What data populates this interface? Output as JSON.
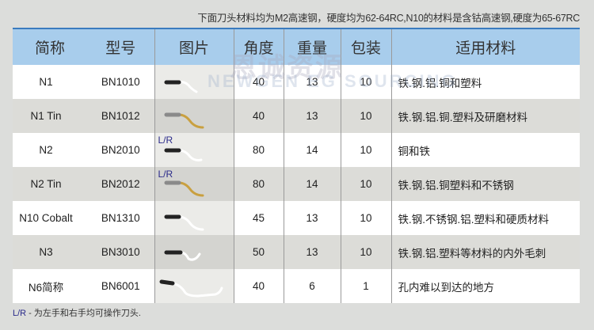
{
  "note": "下面刀头材料均为M2高速钢，硬度均为62-64RC,N10的材料是含钴高速钢,硬度为65-67RC",
  "headers": [
    "简称",
    "型号",
    "图片",
    "角度",
    "重量",
    "包装",
    "适用材料"
  ],
  "rows": [
    {
      "name": "N1",
      "model": "BN1010",
      "lr": "",
      "angle": "40",
      "weight": "13",
      "pack": "10",
      "material": "铁.钢.铝.铜和塑料",
      "tool_color": "#ffffff"
    },
    {
      "name": "N1 Tin",
      "model": "BN1012",
      "lr": "",
      "angle": "40",
      "weight": "13",
      "pack": "10",
      "material": "铁.钢.铝.铜.塑料及研磨材料",
      "tool_color": "#c9a040"
    },
    {
      "name": "N2",
      "model": "BN2010",
      "lr": "L/R",
      "angle": "80",
      "weight": "14",
      "pack": "10",
      "material": "铜和铁",
      "tool_color": "#ffffff"
    },
    {
      "name": "N2 Tin",
      "model": "BN2012",
      "lr": "L/R",
      "angle": "80",
      "weight": "14",
      "pack": "10",
      "material": "铁.钢.铝.铜塑料和不锈钢",
      "tool_color": "#c9a040"
    },
    {
      "name": "N10 Cobalt",
      "model": "BN1310",
      "lr": "",
      "angle": "45",
      "weight": "13",
      "pack": "10",
      "material": "铁.钢.不锈钢.铝.塑料和硬质材料",
      "tool_color": "#ffffff"
    },
    {
      "name": "N3",
      "model": "BN3010",
      "lr": "",
      "angle": "50",
      "weight": "13",
      "pack": "10",
      "material": "铁.钢.铝.塑料等材料的内外毛刺",
      "tool_color": "#ffffff"
    },
    {
      "name": "N6简称",
      "model": "BN6001",
      "lr": "",
      "angle": "40",
      "weight": "6",
      "pack": "1",
      "material": "孔内难以到达的地方",
      "tool_color": "#ffffff"
    }
  ],
  "footer": {
    "key": "L/R",
    "text": " - 为左手和右手均可操作刀头."
  },
  "watermark": {
    "line1": "恩诚资源",
    "line2": "NEWGEN® EG SOURCING.COM"
  },
  "colors": {
    "header_bg": "#a8cdec",
    "accent_line": "#3a7bbf",
    "lr": "#2a2a8a"
  }
}
